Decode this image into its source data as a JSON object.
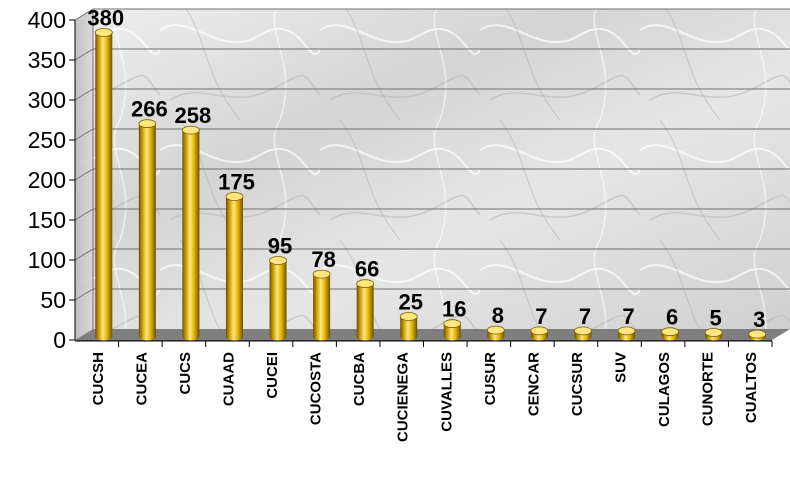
{
  "chart_data": {
    "type": "bar",
    "title": "",
    "xlabel": "",
    "ylabel": "",
    "categories": [
      "CUCSH",
      "CUCEA",
      "CUCS",
      "CUAAD",
      "CUCEI",
      "CUCOSTA",
      "CUCBA",
      "CUCIENEGA",
      "CUVALLES",
      "CUSUR",
      "CENCAR",
      "CUCSUR",
      "SUV",
      "CULAGOS",
      "CUNORTE",
      "CUALTOS"
    ],
    "values": [
      380,
      266,
      258,
      175,
      95,
      78,
      66,
      25,
      16,
      8,
      7,
      7,
      7,
      6,
      5,
      3
    ],
    "ylim": [
      0,
      400
    ],
    "yticks": [
      0,
      50,
      100,
      150,
      200,
      250,
      300,
      350,
      400
    ],
    "grid": true,
    "legend": "none",
    "colors": {
      "bar": "#E2B400",
      "bar_dark": "#7A5C00",
      "bar_light": "#FFE680",
      "floor": "#7F7F7F",
      "wall": "#D8D8D8"
    }
  }
}
